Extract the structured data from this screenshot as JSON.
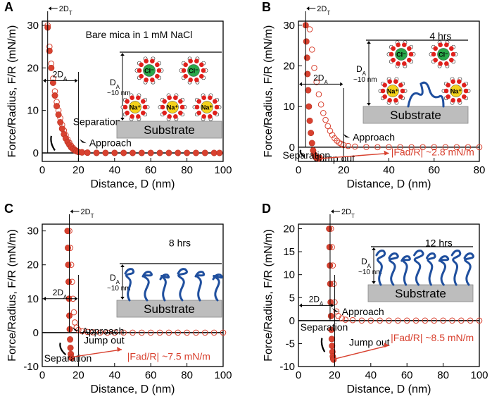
{
  "colors": {
    "data_red": "#d8412f",
    "data_edge": "#b83222",
    "ion_red": "#e0201c",
    "cl_green": "#2aa84a",
    "na_yellow": "#f4d21a",
    "polymer_blue": "#1f4f9e",
    "substrate_gray": "#bdbdbd",
    "annotation_red": "#d8412f"
  },
  "chart_data": [
    {
      "panel": "A",
      "type": "scatter",
      "xlabel": "Distance, D (nm)",
      "ylabel": "Force/Radius, F/R (mN/m)",
      "xlim": [
        0,
        100
      ],
      "ylim": [
        -2,
        31
      ],
      "xticks": [
        "0",
        "20",
        "40",
        "60",
        "80",
        "100"
      ],
      "yticks": [
        "0",
        "10",
        "20",
        "30"
      ],
      "annotations": {
        "title": "Bare mica in 1 mM NaCl",
        "d_t": "2DT",
        "d_a": "2DA",
        "d_a_scale": "DA",
        "d_a_size": "~10 nm",
        "approach": "Approach",
        "separation": "Separation",
        "substrate": "Substrate",
        "ion_cl": "Cl⁻",
        "ion_na": "Na⁺"
      },
      "series": [
        {
          "name": "Approach",
          "style": "open",
          "x": [
            3,
            4,
            5,
            6,
            7,
            8,
            9,
            10,
            11,
            12,
            13,
            14,
            15,
            16,
            17,
            18,
            19,
            20,
            22,
            25,
            30,
            35,
            40,
            45,
            50,
            55,
            60,
            65,
            70,
            75,
            80,
            85,
            90,
            95,
            98
          ],
          "y": [
            30,
            25,
            21,
            17.5,
            14.5,
            12,
            10,
            8.2,
            6.6,
            5.3,
            4.2,
            3.2,
            2.4,
            1.7,
            1.2,
            0.8,
            0.5,
            0.3,
            0.2,
            0.1,
            0.05,
            0,
            0,
            0,
            0,
            0,
            0,
            0,
            0,
            0,
            0,
            0,
            0,
            0,
            0
          ]
        },
        {
          "name": "Separation",
          "style": "filled",
          "x": [
            3,
            4,
            5,
            6,
            7,
            8,
            9,
            10,
            11,
            12,
            13,
            14,
            15,
            16,
            17,
            18,
            19,
            20,
            22,
            25,
            30,
            35,
            40,
            45,
            50,
            55,
            60,
            65,
            70,
            75,
            80,
            85,
            90,
            95,
            98
          ],
          "y": [
            29.5,
            24,
            20,
            16.5,
            13.5,
            11,
            9,
            7.2,
            5.7,
            4.4,
            3.4,
            2.6,
            1.9,
            1.3,
            0.9,
            0.6,
            0.4,
            0.2,
            0.1,
            0.05,
            0,
            0,
            0,
            0,
            0,
            0,
            0,
            0,
            0,
            0,
            0,
            0,
            0,
            0,
            0
          ]
        }
      ]
    },
    {
      "panel": "B",
      "type": "scatter",
      "xlabel": "Distance, D (nm)",
      "ylabel": "Force/Radius, F/R (mN/m)",
      "xlim": [
        0,
        80
      ],
      "ylim": [
        -3.5,
        31
      ],
      "xticks": [
        "0",
        "20",
        "40",
        "60",
        "80"
      ],
      "yticks": [
        "0",
        "10",
        "20",
        "30"
      ],
      "annotations": {
        "time": "4 hrs",
        "d_t": "2DT",
        "d_a": "2DA",
        "d_a_scale": "DA",
        "d_a_size": "~10 nm",
        "approach": "Approach",
        "separation": "Separation",
        "jump_out": "Jump out",
        "adhesion": "|Fad/R| ~2.8 mN/m",
        "substrate": "Substrate",
        "ion_cl": "Cl⁻",
        "ion_na": "Na⁺"
      },
      "series": [
        {
          "name": "Approach",
          "style": "open",
          "x": [
            5,
            6,
            7,
            8,
            9,
            10,
            11,
            12,
            13,
            14,
            15,
            16,
            17,
            18,
            19,
            20,
            22,
            25,
            30,
            35,
            40,
            45,
            50,
            55,
            60,
            65,
            70,
            75,
            80
          ],
          "y": [
            29,
            24,
            19.5,
            16,
            13,
            10.5,
            8.4,
            6.7,
            5.2,
            4,
            3,
            2.2,
            1.6,
            1.1,
            0.8,
            0.5,
            0.3,
            0.15,
            0.05,
            0,
            0,
            0,
            0,
            0,
            0,
            0,
            0,
            0,
            0
          ]
        },
        {
          "name": "Separation",
          "style": "filled",
          "x": [
            3.2,
            3.5,
            3.8,
            4,
            4.3,
            4.6,
            5,
            5.5,
            6,
            6.5,
            7,
            7.5,
            8,
            8.5,
            9,
            9.2,
            9.4
          ],
          "y": [
            30,
            26,
            22,
            18,
            14,
            10,
            6.5,
            3.5,
            1,
            -0.8,
            -1.8,
            -2.4,
            -2.7,
            -2.8,
            -2.8,
            -2.7,
            -2.6
          ]
        }
      ]
    },
    {
      "panel": "C",
      "type": "scatter",
      "xlabel": "Distance, D (nm)",
      "ylabel": "Force/Radius, F/R (mN/m)",
      "xlim": [
        0,
        100
      ],
      "ylim": [
        -10,
        32
      ],
      "xticks": [
        "0",
        "20",
        "40",
        "60",
        "80",
        "100"
      ],
      "yticks": [
        "-10",
        "0",
        "10",
        "20",
        "30"
      ],
      "annotations": {
        "time": "8 hrs",
        "d_t": "2DT",
        "d_a": "2DA",
        "d_a_scale": "DA",
        "d_a_size": "~10 nm",
        "approach": "Approach",
        "separation": "Separation",
        "jump_out": "Jump out",
        "adhesion": "|Fad/R| ~7.5 mN/m",
        "substrate": "Substrate"
      },
      "series": [
        {
          "name": "Approach",
          "style": "open",
          "x": [
            15,
            15.5,
            16,
            16.5,
            17,
            17.5,
            18,
            19,
            20,
            22,
            25,
            28,
            32,
            36,
            40,
            45,
            50,
            55,
            60,
            65,
            70,
            75,
            80,
            85,
            90,
            95,
            100
          ],
          "y": [
            30,
            25,
            20,
            15,
            10,
            6,
            3,
            1.5,
            0.8,
            0.4,
            0.2,
            0.1,
            0,
            0,
            0,
            0,
            0,
            0,
            0,
            0,
            0,
            0,
            0,
            0,
            0,
            0,
            0
          ]
        },
        {
          "name": "Separation",
          "style": "filled",
          "x": [
            14,
            14.2,
            14.4,
            14.6,
            14.8,
            15,
            15.2,
            15.4,
            15.6,
            15.8,
            16,
            16.2
          ],
          "y": [
            30,
            25,
            20,
            15,
            10,
            5,
            1,
            -2,
            -4.5,
            -6.3,
            -7.3,
            -7.5
          ]
        }
      ]
    },
    {
      "panel": "D",
      "type": "scatter",
      "xlabel": "Distance, D (nm)",
      "ylabel": "Force/Radius, F/R (mN/m)",
      "xlim": [
        0,
        100
      ],
      "ylim": [
        -10,
        21
      ],
      "xticks": [
        "0",
        "20",
        "40",
        "60",
        "80",
        "100"
      ],
      "yticks": [
        "-10",
        "-5",
        "0",
        "5",
        "10",
        "15",
        "20"
      ],
      "annotations": {
        "time": "12 hrs",
        "d_t": "2DT",
        "d_a": "2DA",
        "d_a_scale": "DA",
        "d_a_size": "~10 nm",
        "approach": "Approach",
        "separation": "Separation",
        "jump_out": "Jump out",
        "adhesion": "|Fad/R| ~8.5 mN/m",
        "substrate": "Substrate"
      },
      "series": [
        {
          "name": "Approach",
          "style": "open",
          "x": [
            18,
            18.5,
            19,
            19.5,
            20,
            21,
            22,
            24,
            26,
            30,
            35,
            40,
            45,
            50,
            55,
            60,
            65,
            70,
            75,
            80,
            85,
            90,
            95,
            100
          ],
          "y": [
            20,
            16,
            12,
            8,
            4,
            2,
            1,
            0.5,
            0.2,
            0.1,
            0,
            0,
            0,
            0,
            0,
            0,
            0,
            0,
            0,
            0,
            0,
            0,
            0,
            0
          ]
        },
        {
          "name": "Separation",
          "style": "filled",
          "x": [
            17,
            17.2,
            17.4,
            17.6,
            17.8,
            18,
            18.2,
            18.4,
            18.6,
            18.8,
            19,
            19.2,
            19.4
          ],
          "y": [
            20,
            16,
            12,
            8,
            4,
            1,
            -2,
            -4,
            -5.5,
            -6.8,
            -7.8,
            -8.3,
            -8.5
          ]
        }
      ]
    }
  ]
}
